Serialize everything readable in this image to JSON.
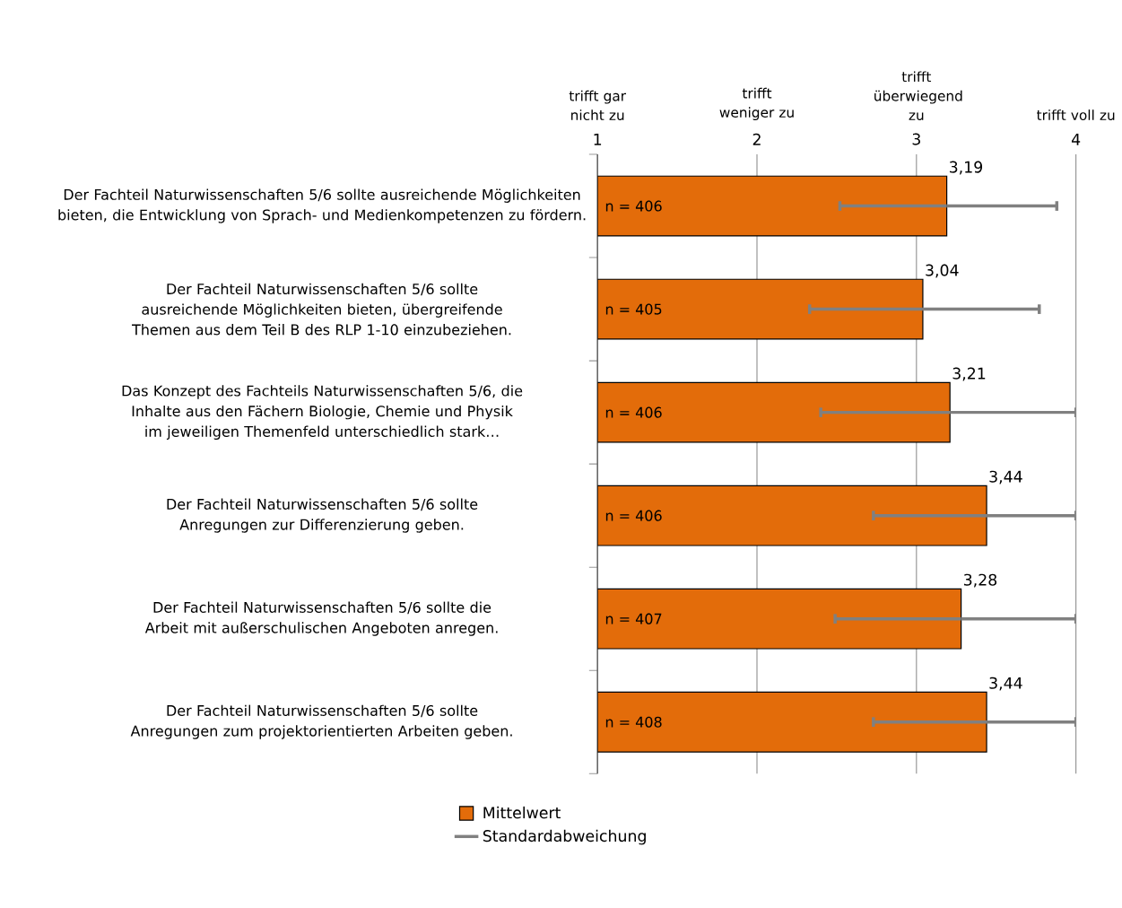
{
  "chart_data": {
    "type": "bar",
    "orientation": "horizontal",
    "categories": [
      "Der Fachteil Naturwissenschaften 5/6 sollte ausreichende Möglichkeiten bieten, die Entwicklung von Sprach- und Medienkompetenzen zu fördern.",
      "Der Fachteil Naturwissenschaften 5/6 sollte ausreichende Möglichkeiten bieten, übergreifende Themen aus dem Teil B des RLP 1-10 einzubeziehen.",
      "Das Konzept des Fachteils Naturwissenschaften 5/6, die Inhalte aus den Fächern Biologie, Chemie und Physik im jeweiligen Themenfeld unterschiedlich stark…",
      "Der Fachteil Naturwissenschaften 5/6 sollte Anregungen zur Differenzierung geben.",
      "Der Fachteil Naturwissenschaften 5/6 sollte die Arbeit mit außerschulischen Angeboten anregen.",
      "Der Fachteil Naturwissenschaften 5/6 sollte Anregungen zum projektorientierten Arbeiten geben."
    ],
    "series": [
      {
        "name": "Mittelwert",
        "color": "#e36c0a",
        "values": [
          3.19,
          3.04,
          3.21,
          3.44,
          3.28,
          3.44
        ],
        "errors": [
          [
            2.52,
            3.88
          ],
          [
            2.33,
            3.77
          ],
          [
            2.4,
            4
          ],
          [
            2.73,
            4
          ],
          [
            2.49,
            4
          ],
          [
            2.73,
            4
          ]
        ],
        "value_labels": [
          "3,19",
          "3,04",
          "3,21",
          "3,44",
          "3,28",
          "3,44"
        ]
      }
    ],
    "xlim": [
      1,
      4
    ],
    "xticks": [
      1,
      2,
      3,
      4
    ],
    "annotations": [
      "n = 406",
      "n = 405",
      "n = 406",
      "n = 406",
      "n = 407",
      "n = 408",
      "Standardabweichung",
      "trifft gar nicht zu",
      "trifft weniger zu",
      "trifft überwiegend zu",
      "trifft voll zu"
    ],
    "grid": "x",
    "legend": "bottom"
  }
}
